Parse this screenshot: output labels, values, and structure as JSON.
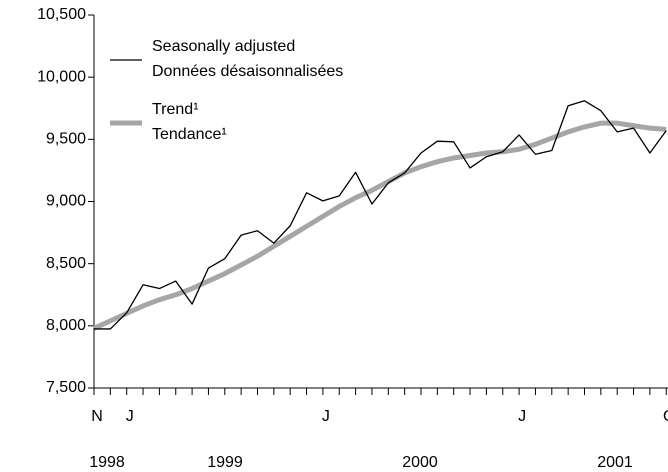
{
  "chart_data": {
    "type": "line",
    "categories": [
      "N",
      null,
      "J",
      null,
      null,
      null,
      null,
      null,
      null,
      null,
      null,
      null,
      null,
      null,
      "J",
      null,
      null,
      null,
      null,
      null,
      null,
      null,
      null,
      null,
      null,
      null,
      "J",
      null,
      null,
      null,
      null,
      null,
      null,
      null,
      null,
      "O"
    ],
    "year_labels": [
      "1998",
      "1999",
      "2000",
      "2001"
    ],
    "series": [
      {
        "name": "Seasonally adjusted\nDonnées désaisonnalisées",
        "color": "#000000",
        "width": 1.3,
        "values": [
          7975,
          7975,
          8105,
          8330,
          8300,
          8360,
          8175,
          8465,
          8540,
          8730,
          8765,
          8665,
          8805,
          9070,
          9005,
          9045,
          9235,
          8980,
          9150,
          9230,
          9390,
          9485,
          9480,
          9270,
          9360,
          9400,
          9535,
          9380,
          9410,
          9770,
          9810,
          9730,
          9560,
          9590,
          9390,
          9570
        ]
      },
      {
        "name": "Trend¹\nTendance¹",
        "color": "#a6a6a6",
        "width": 5,
        "values": [
          7980,
          8040,
          8100,
          8160,
          8210,
          8250,
          8300,
          8360,
          8420,
          8490,
          8560,
          8640,
          8720,
          8800,
          8880,
          8960,
          9030,
          9090,
          9160,
          9230,
          9280,
          9320,
          9350,
          9370,
          9390,
          9400,
          9420,
          9460,
          9510,
          9560,
          9600,
          9630,
          9630,
          9610,
          9590,
          9580
        ]
      }
    ],
    "ylim": [
      7500,
      10500
    ],
    "yticks": [
      {
        "value": 7500,
        "label": "7,500"
      },
      {
        "value": 8000,
        "label": "8,000"
      },
      {
        "value": 8500,
        "label": "8,500"
      },
      {
        "value": 9000,
        "label": "9,000"
      },
      {
        "value": 9500,
        "label": "9,500"
      },
      {
        "value": 10000,
        "label": "10,000"
      },
      {
        "value": 10500,
        "label": "10,500"
      }
    ],
    "grid": false
  }
}
